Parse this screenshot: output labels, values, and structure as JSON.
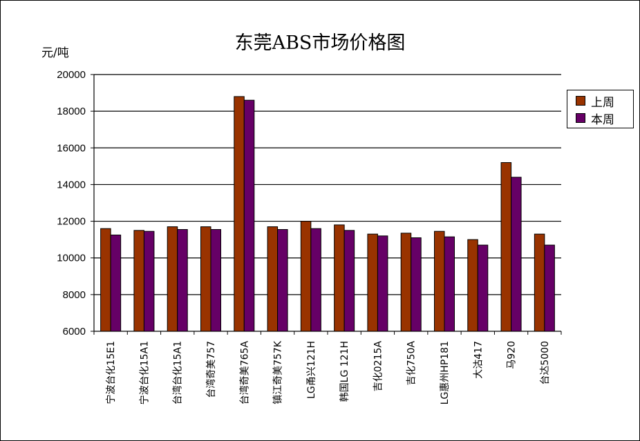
{
  "chart_data": {
    "type": "bar",
    "title": "东莞ABS市场价格图",
    "ylabel": "元/吨",
    "xlabel": "",
    "ylim": [
      6000,
      20000
    ],
    "yticks": [
      6000,
      8000,
      10000,
      12000,
      14000,
      16000,
      18000,
      20000
    ],
    "grid": true,
    "legend_position": "right",
    "categories": [
      "宁波台化15E1",
      "宁波台化15A1",
      "台湾台化15A1",
      "台湾奇美757",
      "台湾奇美765A",
      "镇江奇美757K",
      "LG甬兴121H",
      "韩国LG 121H",
      "吉化0215A",
      "吉化750A",
      "LG惠州HP181",
      "大沽417",
      "马920",
      "台达5000"
    ],
    "series": [
      {
        "name": "上周",
        "color": "#993300",
        "values": [
          11600,
          11500,
          11700,
          11700,
          18800,
          11700,
          12000,
          11800,
          11300,
          11350,
          11450,
          11000,
          15200,
          11300
        ]
      },
      {
        "name": "本周",
        "color": "#660066",
        "values": [
          11250,
          11450,
          11550,
          11550,
          18600,
          11550,
          11600,
          11500,
          11200,
          11100,
          11150,
          10700,
          14400,
          10700
        ]
      }
    ]
  }
}
